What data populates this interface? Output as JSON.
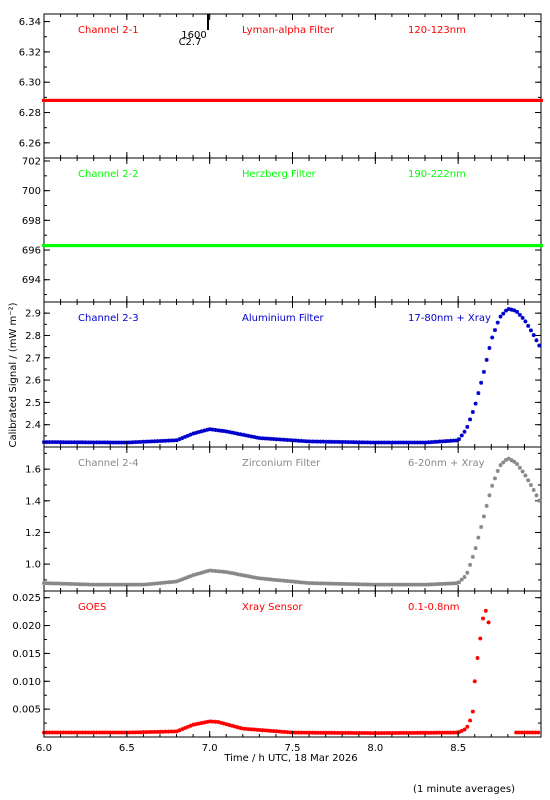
{
  "figure": {
    "ylabel": "Calibrated Signal / (mW m⁻²)",
    "xlabel": "Time / h UTC, 18 Mar 2026",
    "footnote": "(1 minute averages)",
    "marker_label": "1600",
    "marker_sublabel": "C2.7",
    "marker_time": 6.99
  },
  "chart_data": [
    {
      "type": "scatter",
      "channel": "Channel 2-1",
      "filter": "Lyman-alpha Filter",
      "band": "120-123nm",
      "color": "#ff0000",
      "marker": "dot",
      "ylim": [
        6.25,
        6.345
      ],
      "yticks": [
        6.26,
        6.28,
        6.3,
        6.32,
        6.34
      ],
      "ytick_labels": [
        "6.26",
        "6.28",
        "6.30",
        "6.32",
        "6.34"
      ],
      "series": [
        {
          "x": [
            6.0,
            7.5,
            7.65,
            8.0,
            9.0
          ],
          "y": [
            6.288,
            6.288,
            6.288,
            6.288,
            6.288
          ]
        }
      ]
    },
    {
      "type": "scatter",
      "channel": "Channel 2-2",
      "filter": "Herzberg Filter",
      "band": "190-222nm",
      "color": "#00ff00",
      "marker": "dot",
      "ylim": [
        692.5,
        702.2
      ],
      "yticks": [
        694,
        696,
        698,
        700,
        702
      ],
      "ytick_labels": [
        "694",
        "696",
        "698",
        "700",
        "702"
      ],
      "series": [
        {
          "x": [
            6.0,
            7.0,
            8.0,
            9.0
          ],
          "y": [
            696.3,
            696.3,
            696.3,
            696.3
          ]
        }
      ]
    },
    {
      "type": "scatter",
      "channel": "Channel 2-3",
      "filter": "Aluminium Filter",
      "band": "17-80nm + Xray",
      "color": "#0000cc",
      "marker": "star",
      "ylim": [
        2.3,
        2.95
      ],
      "yticks": [
        2.4,
        2.5,
        2.6,
        2.7,
        2.8,
        2.9
      ],
      "ytick_labels": [
        "2.4",
        "2.5",
        "2.6",
        "2.7",
        "2.8",
        "2.9"
      ],
      "series": [
        {
          "x": [
            6.0,
            6.5,
            6.8,
            6.9,
            7.0,
            7.1,
            7.3,
            7.6,
            8.0,
            8.3,
            8.5,
            8.55,
            8.6,
            8.65,
            8.7,
            8.75,
            8.8,
            8.85,
            8.9,
            8.95,
            9.0
          ],
          "y": [
            2.322,
            2.32,
            2.33,
            2.36,
            2.38,
            2.37,
            2.34,
            2.325,
            2.32,
            2.32,
            2.33,
            2.38,
            2.48,
            2.62,
            2.78,
            2.88,
            2.92,
            2.91,
            2.87,
            2.81,
            2.74
          ]
        }
      ]
    },
    {
      "type": "scatter",
      "channel": "Channel 2-4",
      "filter": "Zirconium Filter",
      "band": "6-20nm + Xray",
      "color": "#888888",
      "marker": "star",
      "ylim": [
        0.83,
        1.74
      ],
      "yticks": [
        1.0,
        1.2,
        1.4,
        1.6
      ],
      "ytick_labels": [
        "1.0",
        "1.2",
        "1.4",
        "1.6"
      ],
      "series": [
        {
          "x": [
            6.0,
            6.3,
            6.6,
            6.8,
            6.9,
            7.0,
            7.1,
            7.3,
            7.6,
            8.0,
            8.3,
            8.5,
            8.55,
            8.6,
            8.65,
            8.7,
            8.75,
            8.8,
            8.85,
            8.9,
            8.95,
            9.0
          ],
          "y": [
            0.88,
            0.87,
            0.87,
            0.89,
            0.93,
            0.96,
            0.95,
            0.91,
            0.88,
            0.87,
            0.87,
            0.88,
            0.93,
            1.08,
            1.28,
            1.48,
            1.62,
            1.67,
            1.64,
            1.57,
            1.48,
            1.38
          ]
        }
      ]
    },
    {
      "type": "scatter",
      "channel": "GOES",
      "filter": "Xray Sensor",
      "band": "0.1-0.8nm",
      "color": "#ff0000",
      "marker": "star",
      "ylim": [
        0.0,
        0.0262
      ],
      "yticks": [
        0.005,
        0.01,
        0.015,
        0.02,
        0.025
      ],
      "ytick_labels": [
        "0.005",
        "0.010",
        "0.015",
        "0.020",
        "0.025"
      ],
      "xlim": [
        6.0,
        9.0
      ],
      "xticks": [
        6.0,
        6.5,
        7.0,
        7.5,
        8.0,
        8.5
      ],
      "xtick_labels": [
        "6.0",
        "6.5",
        "7.0",
        "7.5",
        "8.0",
        "8.5"
      ],
      "series": [
        {
          "x": [
            6.0,
            6.5,
            6.8,
            6.9,
            7.0,
            7.05,
            7.2,
            7.5,
            8.0,
            8.5,
            8.55,
            8.58,
            8.6
          ],
          "y": [
            0.0008,
            0.0008,
            0.001,
            0.0022,
            0.0028,
            0.0027,
            0.0015,
            0.0008,
            0.0007,
            0.0008,
            0.0015,
            0.0035,
            0.006
          ]
        },
        {
          "x": [
            8.6,
            8.62,
            8.64,
            8.66,
            8.68,
            8.7
          ],
          "y": [
            0.01,
            0.015,
            0.019,
            0.0235,
            0.021,
            0.0185
          ]
        },
        {
          "x": [
            8.85,
            9.0
          ],
          "y": [
            0.0008,
            0.0008
          ]
        }
      ]
    }
  ]
}
